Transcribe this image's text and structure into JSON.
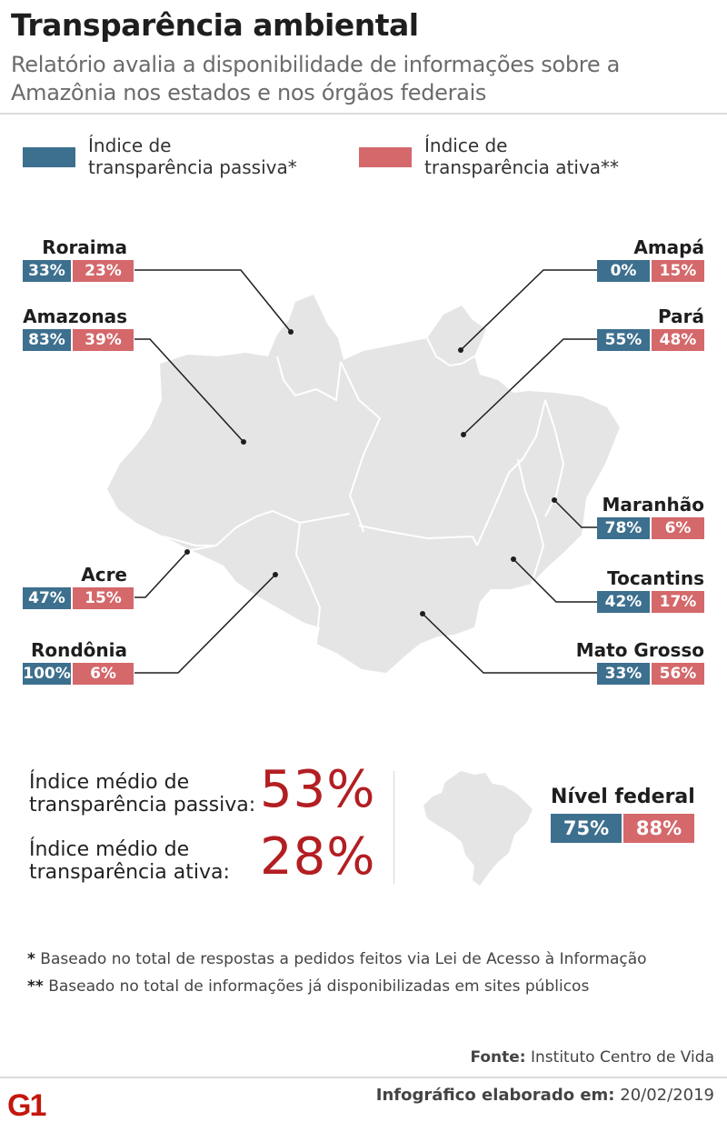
{
  "header": {
    "title": "Transparência ambiental",
    "subtitle": "Relatório avalia a disponibilidade de informações sobre a Amazônia nos estados e nos órgãos federais"
  },
  "legend": {
    "passive_line1": "Índice de",
    "passive_line2": "transparência passiva*",
    "active_line1": "Índice de",
    "active_line2": "transparência ativa**",
    "passive_color": "#3d6f8e",
    "active_color": "#d4686b"
  },
  "states": {
    "roraima": {
      "name": "Roraima",
      "passive": "33%",
      "active": "23%"
    },
    "amazonas": {
      "name": "Amazonas",
      "passive": "83%",
      "active": "39%"
    },
    "acre": {
      "name": "Acre",
      "passive": "47%",
      "active": "15%"
    },
    "rondonia": {
      "name": "Rondônia",
      "passive": "100%",
      "active": "6%"
    },
    "amapa": {
      "name": "Amapá",
      "passive": "0%",
      "active": "15%"
    },
    "para": {
      "name": "Pará",
      "passive": "55%",
      "active": "48%"
    },
    "maranhao": {
      "name": "Maranhão",
      "passive": "78%",
      "active": "6%"
    },
    "tocantins": {
      "name": "Tocantins",
      "passive": "42%",
      "active": "17%"
    },
    "matogrosso": {
      "name": "Mato Grosso",
      "passive": "33%",
      "active": "56%"
    }
  },
  "averages": {
    "passive_line1": "Índice médio de",
    "passive_line2": "transparência passiva:",
    "passive_value": "53%",
    "active_line1": "Índice médio de",
    "active_line2": "transparência ativa:",
    "active_value": "28%"
  },
  "federal": {
    "label": "Nível federal",
    "passive": "75%",
    "active": "88%"
  },
  "notes": {
    "note1_mark": "*",
    "note1_text": "Baseado no total de respostas a pedidos feitos via Lei de Acesso à Informação",
    "note2_mark": "**",
    "note2_text": "Baseado no total de informações já disponibilizadas em sites públicos"
  },
  "footer": {
    "source_label": "Fonte:",
    "source_value": "Instituto Centro de Vida",
    "credit_label": "Infográfico elaborado em:",
    "credit_value": "20/02/2019",
    "logo_text": "G1"
  },
  "colors": {
    "map_fill": "#e5e5e5",
    "highlight": "#b31e22",
    "g1_red": "#c4170c"
  }
}
